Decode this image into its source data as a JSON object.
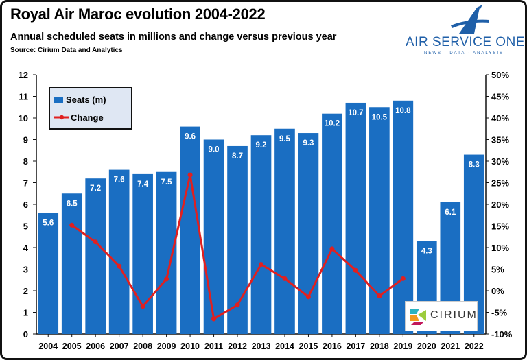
{
  "header": {
    "title": "Royal Air Maroc evolution 2004-2022",
    "subtitle": "Annual scheduled seats in millions and change versus previous year",
    "source": "Source: Cirium Data and Analytics"
  },
  "branding": {
    "name": "AIR SERVICE ONE",
    "tagline": "NEWS · DATA · ANALYSIS",
    "partner": "CIRIUM",
    "brand_color": "#1f5fa8"
  },
  "chart_data": {
    "type": "bar",
    "categories": [
      "2004",
      "2005",
      "2006",
      "2007",
      "2008",
      "2009",
      "2010",
      "2011",
      "2012",
      "2013",
      "2014",
      "2015",
      "2016",
      "2017",
      "2018",
      "2019",
      "2020",
      "2021",
      "2022"
    ],
    "series": [
      {
        "name": "Seats (m)",
        "type": "bar",
        "axis": "left",
        "color": "#1a6ec2",
        "values": [
          5.6,
          6.5,
          7.2,
          7.6,
          7.4,
          7.5,
          9.6,
          9.0,
          8.7,
          9.2,
          9.5,
          9.3,
          10.2,
          10.7,
          10.5,
          10.8,
          4.3,
          6.1,
          8.3
        ],
        "labels": [
          "5.6",
          "6.5",
          "7.2",
          "7.6",
          "7.4",
          "7.5",
          "9.6",
          "9.0",
          "8.7",
          "9.2",
          "9.5",
          "9.3",
          "10.2",
          "10.7",
          "10.5",
          "10.8",
          "4.3",
          "6.1",
          "8.3"
        ]
      },
      {
        "name": "Change",
        "type": "line",
        "axis": "right",
        "color": "#e02020",
        "values": [
          null,
          15.2,
          11.3,
          5.7,
          -3.6,
          2.7,
          26.8,
          -6.5,
          -3.3,
          6.1,
          2.8,
          -1.4,
          9.7,
          4.7,
          -1.2,
          2.8,
          null,
          null,
          null
        ]
      }
    ],
    "y_left": {
      "min": 0,
      "max": 12,
      "ticks": [
        "0",
        "1",
        "2",
        "3",
        "4",
        "5",
        "6",
        "7",
        "8",
        "9",
        "10",
        "11",
        "12"
      ]
    },
    "y_right": {
      "min": -10,
      "max": 50,
      "ticks": [
        "-10%",
        "-5%",
        "0%",
        "5%",
        "10%",
        "15%",
        "20%",
        "25%",
        "30%",
        "35%",
        "40%",
        "45%",
        "50%"
      ]
    },
    "grid": false,
    "legend_position": "top-left"
  }
}
